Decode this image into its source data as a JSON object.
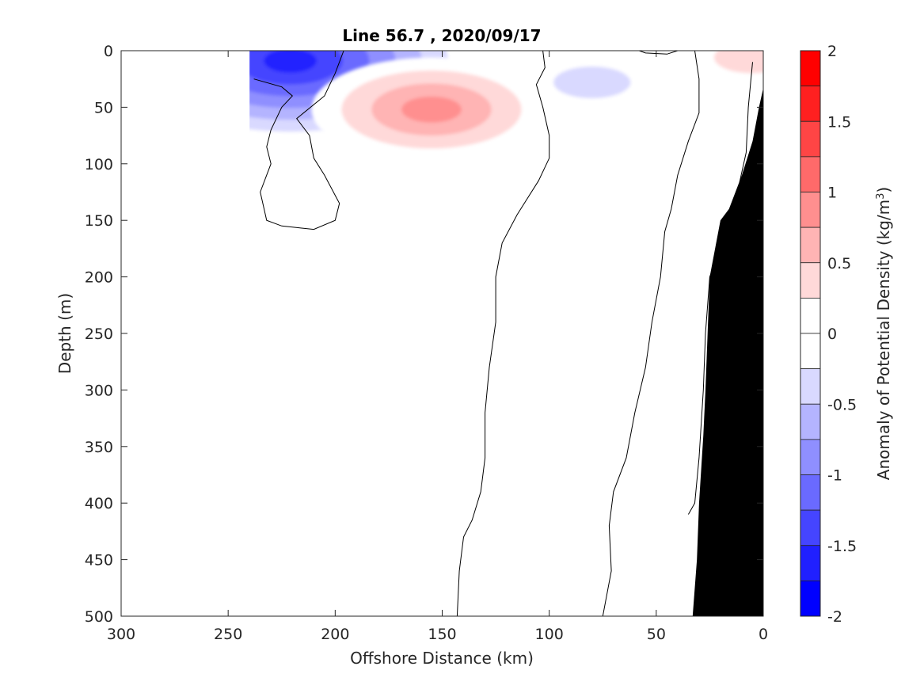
{
  "chart_data": {
    "type": "heatmap",
    "title": "Line 56.7 , 2020/09/17",
    "xlabel": "Offshore Distance (km)",
    "ylabel": "Depth (m)",
    "xlim": [
      300,
      0
    ],
    "ylim": [
      500,
      0
    ],
    "x_axis_reversed": true,
    "y_axis_reversed": true,
    "x_ticks": [
      "300",
      "250",
      "200",
      "150",
      "100",
      "50",
      "0"
    ],
    "y_ticks": [
      "0",
      "50",
      "100",
      "150",
      "200",
      "250",
      "300",
      "350",
      "400",
      "450",
      "500"
    ],
    "colorbar": {
      "label_prefix": "Anomaly of Potential Density (kg/m",
      "label_sup": "3",
      "label_suffix": ")",
      "range": [
        -2,
        2
      ],
      "ticks": [
        "2",
        "1.5",
        "1",
        "0.5",
        "0",
        "-0.5",
        "-1",
        "-1.5",
        "-2"
      ],
      "levels": [
        {
          "min": 1.75,
          "max": 2.0,
          "color": "#ff0000"
        },
        {
          "min": 1.5,
          "max": 1.75,
          "color": "#ff2020"
        },
        {
          "min": 1.25,
          "max": 1.5,
          "color": "#ff4545"
        },
        {
          "min": 1.0,
          "max": 1.25,
          "color": "#ff6a6a"
        },
        {
          "min": 0.75,
          "max": 1.0,
          "color": "#ff8f8f"
        },
        {
          "min": 0.5,
          "max": 0.75,
          "color": "#ffb4b4"
        },
        {
          "min": 0.25,
          "max": 0.5,
          "color": "#ffd9d9"
        },
        {
          "min": 0.0,
          "max": 0.25,
          "color": "#ffffff"
        },
        {
          "min": -0.25,
          "max": 0.0,
          "color": "#ffffff"
        },
        {
          "min": -0.5,
          "max": -0.25,
          "color": "#d9d9ff"
        },
        {
          "min": -0.75,
          "max": -0.5,
          "color": "#b4b4ff"
        },
        {
          "min": -1.0,
          "max": -0.75,
          "color": "#8f8fff"
        },
        {
          "min": -1.25,
          "max": -1.0,
          "color": "#6a6aff"
        },
        {
          "min": -1.5,
          "max": -1.25,
          "color": "#4545ff"
        },
        {
          "min": -1.75,
          "max": -1.5,
          "color": "#2020ff"
        },
        {
          "min": -2.0,
          "max": -1.75,
          "color": "#0000ff"
        }
      ]
    },
    "anomaly_features": [
      {
        "name": "negative-core-west",
        "x": 221,
        "y": 9,
        "value": -1.75
      },
      {
        "name": "positive-core-center",
        "x": 155,
        "y": 52,
        "value": 1.1
      },
      {
        "name": "negative-patch-east",
        "x": 80,
        "y": 28,
        "value": -0.6
      },
      {
        "name": "positive-patch-surface-east",
        "x": 5,
        "y": 6,
        "value": 0.4
      }
    ],
    "zero_contours": [
      {
        "name": "contour-west-lobe",
        "points": [
          [
            238,
            25
          ],
          [
            225,
            32
          ],
          [
            220,
            40
          ],
          [
            225,
            50
          ],
          [
            230,
            70
          ],
          [
            232,
            85
          ],
          [
            230,
            100
          ],
          [
            235,
            125
          ],
          [
            232,
            150
          ],
          [
            225,
            155
          ],
          [
            210,
            158
          ],
          [
            200,
            150
          ],
          [
            198,
            135
          ],
          [
            205,
            110
          ],
          [
            210,
            95
          ],
          [
            212,
            75
          ],
          [
            218,
            60
          ],
          [
            205,
            40
          ],
          [
            200,
            20
          ],
          [
            196,
            0
          ]
        ]
      },
      {
        "name": "contour-center",
        "points": [
          [
            103,
            0
          ],
          [
            102,
            15
          ],
          [
            106,
            30
          ],
          [
            103,
            50
          ],
          [
            100,
            75
          ],
          [
            100,
            95
          ],
          [
            105,
            115
          ],
          [
            115,
            145
          ],
          [
            122,
            170
          ],
          [
            125,
            200
          ],
          [
            125,
            240
          ],
          [
            128,
            280
          ],
          [
            130,
            320
          ],
          [
            130,
            360
          ],
          [
            132,
            390
          ],
          [
            136,
            415
          ],
          [
            140,
            430
          ],
          [
            142,
            460
          ],
          [
            143,
            500
          ]
        ]
      },
      {
        "name": "contour-east",
        "points": [
          [
            32,
            0
          ],
          [
            30,
            25
          ],
          [
            30,
            55
          ],
          [
            35,
            80
          ],
          [
            40,
            110
          ],
          [
            43,
            140
          ],
          [
            46,
            160
          ],
          [
            48,
            200
          ],
          [
            52,
            240
          ],
          [
            55,
            280
          ],
          [
            60,
            320
          ],
          [
            64,
            360
          ],
          [
            70,
            390
          ],
          [
            72,
            420
          ],
          [
            71,
            460
          ],
          [
            75,
            500
          ]
        ]
      },
      {
        "name": "contour-surface-cap",
        "points": [
          [
            58,
            0
          ],
          [
            55,
            2
          ],
          [
            45,
            3
          ],
          [
            40,
            0
          ]
        ]
      },
      {
        "name": "contour-slope",
        "points": [
          [
            5,
            10
          ],
          [
            7,
            50
          ],
          [
            8,
            90
          ],
          [
            15,
            150
          ],
          [
            22,
            185
          ],
          [
            25,
            200
          ],
          [
            27,
            250
          ],
          [
            28,
            300
          ],
          [
            30,
            360
          ],
          [
            32,
            400
          ],
          [
            35,
            410
          ]
        ]
      }
    ],
    "bathymetry": {
      "label": "seafloor",
      "color": "#000000",
      "points": [
        [
          0,
          33
        ],
        [
          2,
          50
        ],
        [
          5,
          80
        ],
        [
          10,
          110
        ],
        [
          16,
          140
        ],
        [
          20,
          150
        ],
        [
          23,
          180
        ],
        [
          25,
          200
        ],
        [
          26,
          250
        ],
        [
          27,
          300
        ],
        [
          28,
          340
        ],
        [
          30,
          400
        ],
        [
          31,
          450
        ],
        [
          33,
          500
        ]
      ]
    },
    "data_extent": {
      "x_west": 240,
      "y_bottom": 500
    }
  }
}
